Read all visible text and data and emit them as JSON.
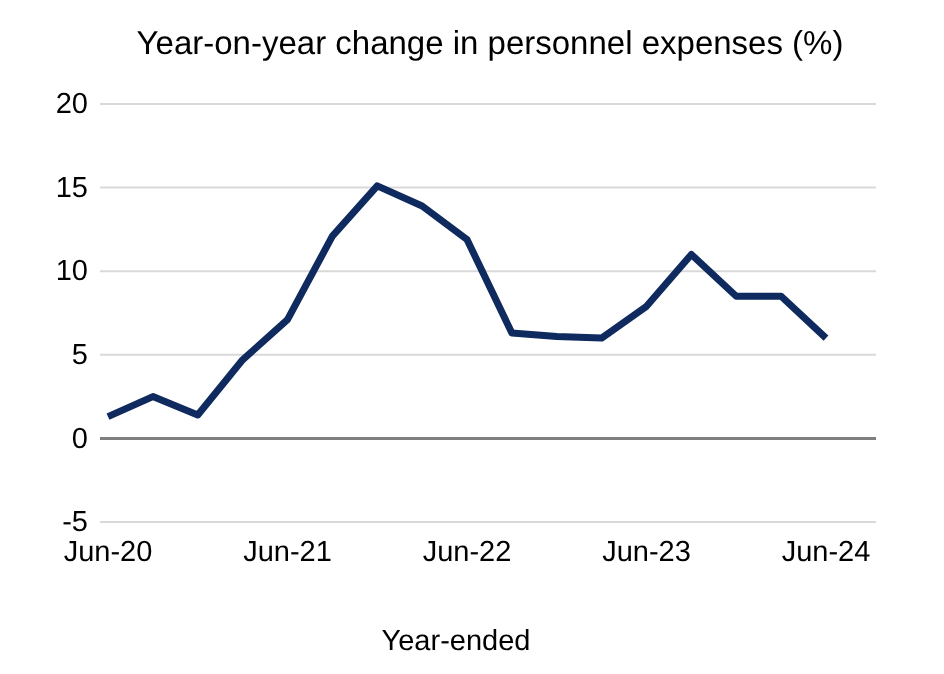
{
  "chart_data": {
    "type": "line",
    "title": "Year-on-year change in personnel expenses (%)",
    "xlabel": "Year-ended",
    "categories": [
      "Jun-20",
      null,
      null,
      null,
      "Jun-21",
      null,
      null,
      null,
      "Jun-22",
      null,
      null,
      null,
      "Jun-23",
      null,
      null,
      null,
      "Jun-24"
    ],
    "series": [
      {
        "color": "#0e2a5e",
        "values": [
          1.3,
          2.5,
          1.4,
          4.7,
          7.1,
          12.1,
          15.1,
          13.9,
          11.9,
          6.3,
          6.1,
          6.0,
          7.9,
          11.0,
          8.5,
          8.5,
          6.0
        ]
      }
    ],
    "ylim": [
      -5,
      20
    ],
    "yticks": [
      -5,
      0,
      5,
      10,
      15,
      20
    ],
    "grid": "y",
    "marker": "none",
    "line_style": "solid"
  }
}
